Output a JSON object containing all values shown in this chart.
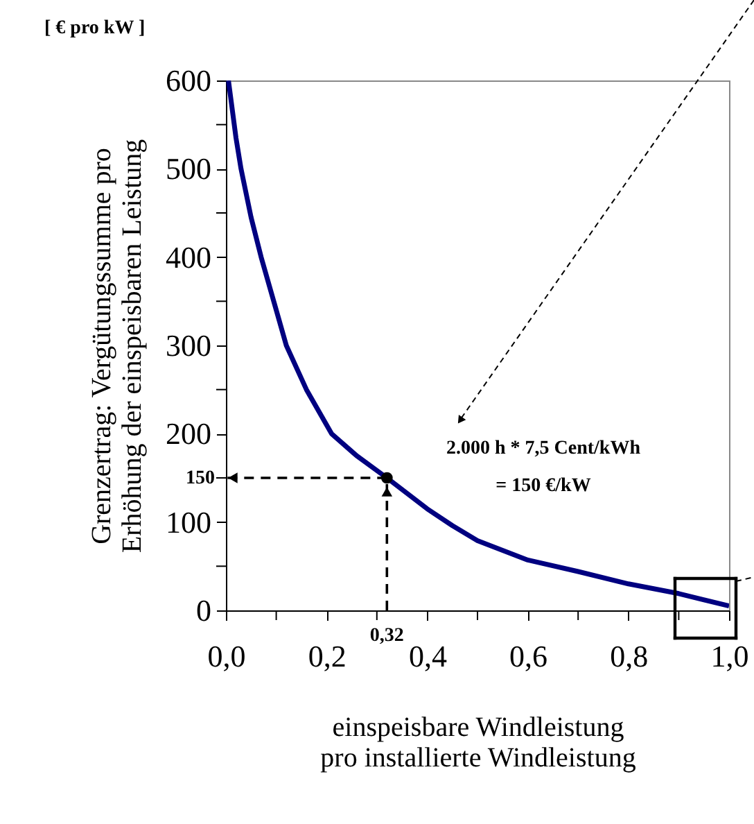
{
  "chart_data": {
    "type": "line",
    "xlabel": "einspeisbare Windleistung\npro installierte Windleistung",
    "ylabel": "Grenzertrag: Vergütungssumme  pro\nErhöhung der einspeisbaren Leistung",
    "series": [
      {
        "color": "#000080",
        "marker": "none",
        "line_style": "solid",
        "x": [
          0.005,
          0.02,
          0.03,
          0.05,
          0.07,
          0.1,
          0.12,
          0.16,
          0.21,
          0.26,
          0.32,
          0.4,
          0.45,
          0.5,
          0.55,
          0.6,
          0.7,
          0.8,
          0.9,
          1.0
        ],
        "values": [
          600,
          535,
          500,
          445,
          400,
          340,
          300,
          250,
          200,
          175,
          150,
          115,
          96,
          79,
          68,
          57,
          44,
          30,
          19,
          5
        ]
      },
      {
        "type": "scatter",
        "marker": "circle",
        "color": "#000000",
        "x": [
          0.32
        ],
        "values": [
          150
        ]
      }
    ],
    "xlim": [
      0,
      1
    ],
    "ylim": [
      0,
      600
    ],
    "xticks": [
      {
        "value": 0,
        "label": "0,0"
      },
      {
        "value": 0.1,
        "label": null
      },
      {
        "value": 0.2,
        "label": "0,2"
      },
      {
        "value": 0.3,
        "label": null
      },
      {
        "value": 0.4,
        "label": "0,4"
      },
      {
        "value": 0.5,
        "label": null
      },
      {
        "value": 0.6,
        "label": "0,6"
      },
      {
        "value": 0.7,
        "label": null
      },
      {
        "value": 0.8,
        "label": "0,8"
      },
      {
        "value": 0.9,
        "label": null
      },
      {
        "value": 1,
        "label": "1,0"
      }
    ],
    "yticks": [
      0,
      {
        "value": 50,
        "label": null
      },
      100,
      {
        "value": 150,
        "label": null
      },
      200,
      {
        "value": 250,
        "label": null
      },
      300,
      {
        "value": 350,
        "label": null
      },
      400,
      {
        "value": 450,
        "label": null
      },
      500,
      {
        "value": 550,
        "label": null
      },
      600
    ],
    "grid": false,
    "annotations": [
      "[ € pro kW ]",
      "2.000 h * 7,5 Cent/kWh\n= 150 €/kW",
      {
        "text": "150",
        "x": 0.32,
        "y": 150
      },
      {
        "text": "0,32",
        "x": 0.32,
        "y": 150
      }
    ]
  }
}
